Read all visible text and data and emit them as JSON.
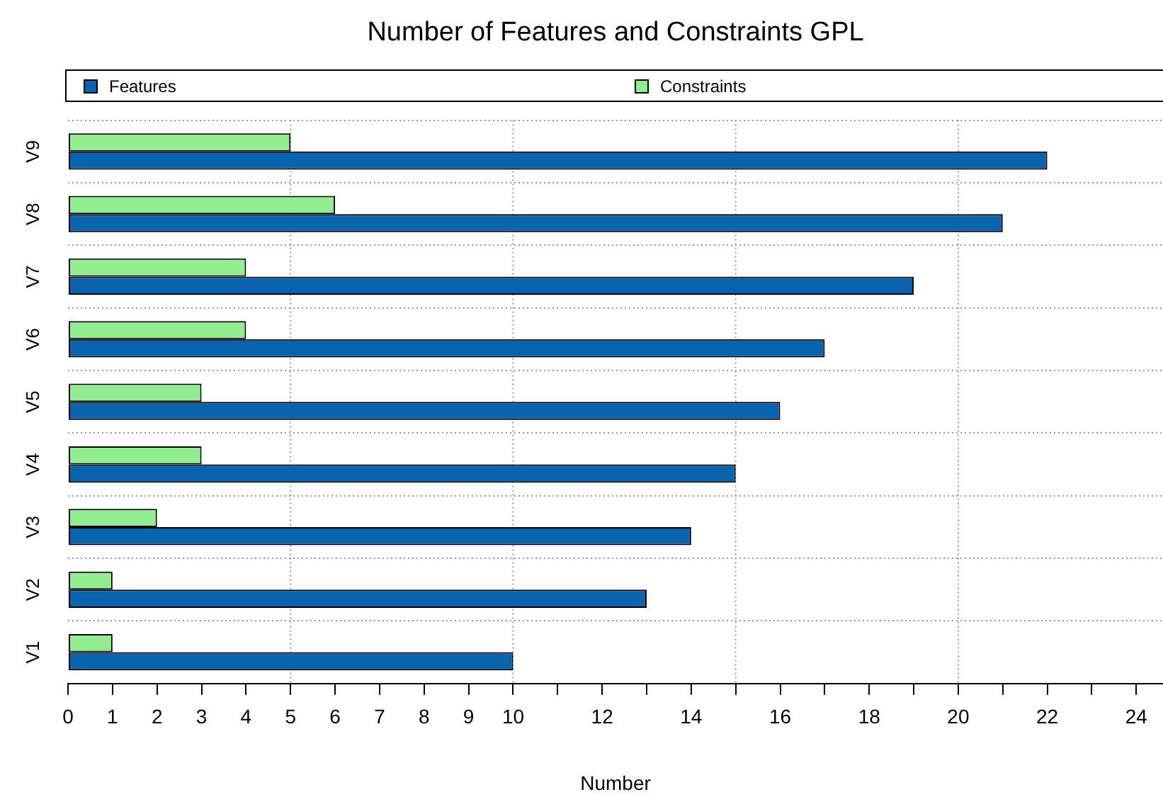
{
  "chart_data": {
    "type": "bar",
    "orientation": "horizontal",
    "title": "Number of Features and Constraints GPL",
    "xlabel": "Number",
    "categories": [
      "V9",
      "V8",
      "V7",
      "V6",
      "V5",
      "V4",
      "V3",
      "V2",
      "V1"
    ],
    "series": [
      {
        "name": "Features",
        "color": "#0a63ad",
        "values": [
          22,
          21,
          19,
          17,
          16,
          15,
          14,
          13,
          10
        ]
      },
      {
        "name": "Constraints",
        "color": "#90ee90",
        "values": [
          5,
          6,
          4,
          4,
          3,
          3,
          2,
          1,
          1
        ]
      }
    ],
    "xlim": [
      0,
      24.6
    ],
    "xticks": [
      0,
      1,
      2,
      3,
      4,
      5,
      6,
      7,
      8,
      9,
      10,
      {
        "value": 11,
        "label": null
      },
      12,
      {
        "value": 13,
        "label": null
      },
      14,
      {
        "value": 15,
        "label": null
      },
      16,
      {
        "value": 17,
        "label": null
      },
      18,
      {
        "value": 19,
        "label": null
      },
      20,
      {
        "value": 21,
        "label": null
      },
      22,
      {
        "value": 23,
        "label": null
      },
      24
    ],
    "ref_lines": [
      {
        "axis": "x",
        "value": 5,
        "color": "#999999",
        "line_style": "dotted"
      },
      {
        "axis": "x",
        "value": 10,
        "color": "#999999",
        "line_style": "dotted"
      },
      {
        "axis": "x",
        "value": 15,
        "color": "#999999",
        "line_style": "dotted"
      },
      {
        "axis": "x",
        "value": 20,
        "color": "#999999",
        "line_style": "dotted"
      }
    ],
    "grid": "y",
    "legend": "top"
  }
}
